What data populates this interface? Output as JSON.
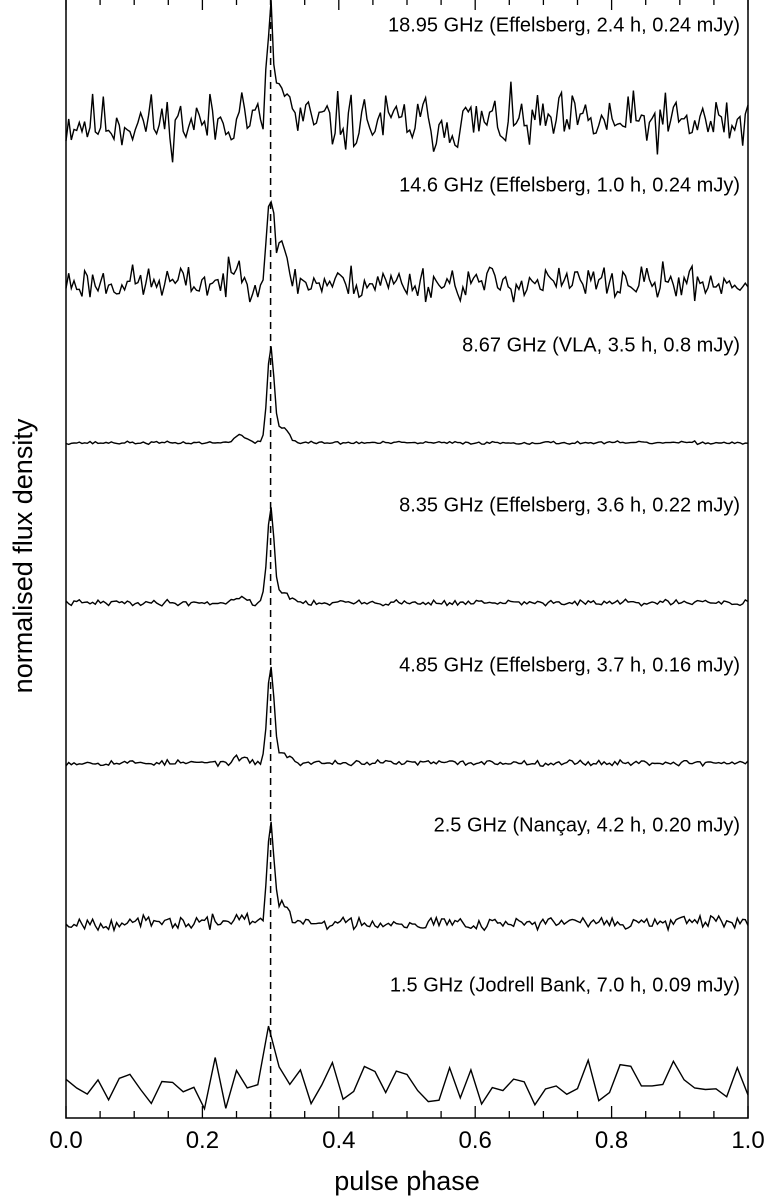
{
  "chart_data": {
    "type": "line",
    "title": "",
    "xlabel": "pulse phase",
    "ylabel": "normalised flux density",
    "xlim": [
      0.0,
      1.0
    ],
    "x_ticks": [
      "0.0",
      "0.2",
      "0.4",
      "0.6",
      "0.8",
      "1.0"
    ],
    "x_tick_values": [
      0.0,
      0.2,
      0.4,
      0.6,
      0.8,
      1.0
    ],
    "y_ticks_shown": false,
    "grid": false,
    "reference_line": {
      "x": 0.3,
      "style": "dashed"
    },
    "line_color": "#000000",
    "series": [
      {
        "name": "18.95 GHz (Effelsberg, 2.4 h, 0.24 mJy)",
        "noise": 0.3,
        "peak": 1.0,
        "shoulder": 0.35,
        "bins": 256,
        "seed": 11
      },
      {
        "name": "14.6 GHz (Effelsberg, 1.0 h, 0.24 mJy)",
        "noise": 0.18,
        "peak": 1.0,
        "shoulder": 0.3,
        "bins": 256,
        "seed": 23
      },
      {
        "name": "8.67 GHz (VLA, 3.5 h, 0.8 mJy)",
        "noise": 0.015,
        "peak": 1.0,
        "shoulder": 0.16,
        "bins": 256,
        "seed": 37
      },
      {
        "name": "8.35 GHz (Effelsberg, 3.6 h, 0.22 mJy)",
        "noise": 0.03,
        "peak": 1.0,
        "shoulder": 0.12,
        "bins": 256,
        "seed": 41
      },
      {
        "name": "4.85 GHz (Effelsberg, 3.7 h, 0.16 mJy)",
        "noise": 0.03,
        "peak": 1.0,
        "shoulder": 0.1,
        "bins": 256,
        "seed": 53
      },
      {
        "name": "2.5 GHz (Nançay, 4.2 h, 0.20 mJy)",
        "noise": 0.07,
        "peak": 1.0,
        "shoulder": 0.18,
        "bins": 256,
        "seed": 67
      },
      {
        "name": "1.5 GHz (Jodrell Bank, 7.0 h, 0.09 mJy)",
        "noise": 0.3,
        "peak": 1.0,
        "shoulder": 0.2,
        "bins": 64,
        "seed": 79
      }
    ]
  }
}
